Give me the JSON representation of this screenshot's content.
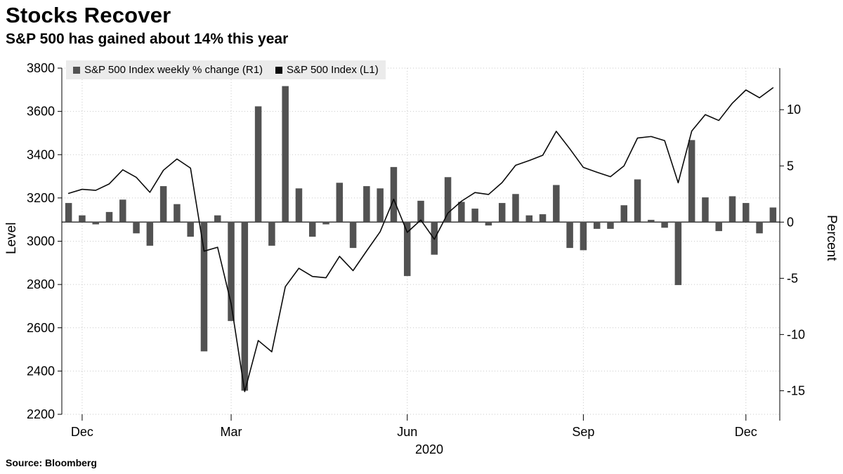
{
  "source_note": "Source: Bloomberg",
  "chart_data": {
    "type": "bar+line",
    "title": "Stocks Recover",
    "subtitle": "S&P 500 has gained about 14% this year",
    "x_tick_labels": [
      "Dec",
      "Mar",
      "Jun",
      "Sep",
      "Dec"
    ],
    "x_tick_indices": [
      1,
      12,
      25,
      38,
      50
    ],
    "x_year_label": "2020",
    "grid": "dotted",
    "legend_position": "top-left-inside",
    "left_axis": {
      "label": "Level",
      "min": 2200,
      "max": 3800,
      "ticks": [
        3800,
        3600,
        3400,
        3200,
        3000,
        2800,
        2600,
        2400,
        2200
      ]
    },
    "right_axis": {
      "label": "Percent",
      "min": -17.1,
      "max": 13.7,
      "ticks": [
        10,
        5,
        0,
        -5,
        -10,
        -15
      ]
    },
    "series": [
      {
        "name": "S&P 500 Index weekly % change (R1)",
        "type": "bar",
        "axis": "right",
        "color": "#525252",
        "values": [
          1.7,
          0.6,
          -0.2,
          0.9,
          2.0,
          -1.0,
          -2.1,
          3.2,
          1.6,
          -1.3,
          -11.5,
          0.6,
          -8.8,
          -15.0,
          10.3,
          -2.1,
          12.1,
          3.0,
          -1.3,
          -0.2,
          3.5,
          -2.3,
          3.2,
          3.0,
          4.9,
          -4.8,
          1.9,
          -2.9,
          4.0,
          1.8,
          1.2,
          -0.3,
          1.7,
          2.5,
          0.6,
          0.7,
          3.3,
          -2.3,
          -2.5,
          -0.6,
          -0.6,
          1.5,
          3.8,
          0.2,
          -0.5,
          -5.6,
          7.3,
          2.2,
          -0.8,
          2.3,
          1.7,
          -1.0,
          1.3
        ]
      },
      {
        "name": "S&P 500 Index (L1)",
        "type": "line",
        "axis": "left",
        "color": "#0a0a0a",
        "values": [
          3221,
          3240,
          3235,
          3265,
          3330,
          3295,
          3226,
          3328,
          3380,
          3338,
          2954,
          2972,
          2711,
          2305,
          2541,
          2489,
          2790,
          2875,
          2837,
          2831,
          2930,
          2864,
          2955,
          3044,
          3194,
          3041,
          3098,
          3009,
          3130,
          3185,
          3225,
          3216,
          3271,
          3351,
          3373,
          3397,
          3508,
          3427,
          3341,
          3319,
          3298,
          3348,
          3477,
          3484,
          3465,
          3270,
          3509,
          3585,
          3558,
          3638,
          3699,
          3663,
          3709
        ]
      }
    ]
  }
}
